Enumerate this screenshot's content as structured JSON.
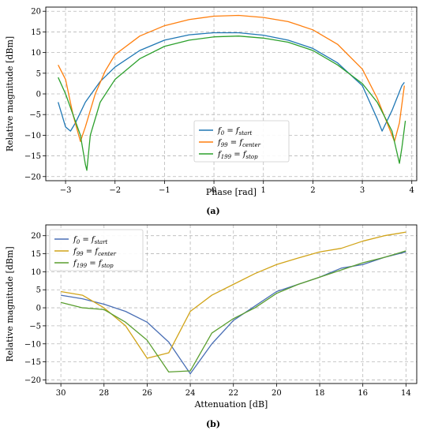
{
  "chart_data": [
    {
      "type": "line",
      "caption": "(a)",
      "xlabel": "Phase [rad]",
      "ylabel": "Relative magnitude [dBm]",
      "xlim": [
        -3.4,
        4.1
      ],
      "ylim": [
        -21,
        21
      ],
      "xticks": [
        -3,
        -2,
        -1,
        0,
        1,
        2,
        3,
        4
      ],
      "yticks": [
        -20,
        -15,
        -10,
        -5,
        0,
        5,
        10,
        15,
        20
      ],
      "grid": true,
      "legend_position": "lower-center",
      "colors": [
        "#1f77b4",
        "#ff7f0e",
        "#2ca02c"
      ],
      "series": [
        {
          "name": "f0 = fstart",
          "label_main": "f",
          "label_sub": "0",
          "label_eq": " = f",
          "label_sub2": "start",
          "x": [
            -3.15,
            -3.0,
            -2.9,
            -2.8,
            -2.6,
            -2.3,
            -2.0,
            -1.5,
            -1.0,
            -0.5,
            0.0,
            0.5,
            1.0,
            1.5,
            2.0,
            2.5,
            3.0,
            3.3,
            3.4,
            3.6,
            3.8,
            3.85
          ],
          "y": [
            -2,
            -8,
            -9,
            -7,
            -2,
            3,
            6.5,
            10.5,
            13,
            14.3,
            14.8,
            14.8,
            14.2,
            13,
            11,
            7.5,
            2,
            -6,
            -9,
            -4,
            2,
            2.8
          ]
        },
        {
          "name": "f99 = fcenter",
          "label_main": "f",
          "label_sub": "99",
          "label_eq": " = f",
          "label_sub2": "center",
          "x": [
            -3.15,
            -3.0,
            -2.85,
            -2.7,
            -2.6,
            -2.4,
            -2.2,
            -2.0,
            -1.5,
            -1.0,
            -0.5,
            0.0,
            0.5,
            1.0,
            1.5,
            2.0,
            2.5,
            3.0,
            3.3,
            3.6,
            3.65,
            3.75,
            3.85
          ],
          "y": [
            7,
            3.5,
            -5,
            -11.5,
            -8,
            0,
            5.5,
            9.5,
            14,
            16.5,
            18,
            18.8,
            19,
            18.5,
            17.5,
            15.5,
            12,
            6,
            -1,
            -10,
            -11.5,
            -7,
            2
          ]
        },
        {
          "name": "f199 = fstop",
          "label_main": "f",
          "label_sub": "199",
          "label_eq": " = f",
          "label_sub2": "stop",
          "x": [
            -3.15,
            -3.0,
            -2.85,
            -2.7,
            -2.6,
            -2.57,
            -2.5,
            -2.3,
            -2.0,
            -1.5,
            -1.0,
            -0.5,
            0.0,
            0.5,
            1.0,
            1.5,
            2.0,
            2.5,
            3.0,
            3.3,
            3.6,
            3.75,
            3.8,
            3.87
          ],
          "y": [
            4,
            0,
            -5,
            -10,
            -17,
            -18.5,
            -10,
            -2,
            3.5,
            8.5,
            11.5,
            13,
            13.8,
            14,
            13.5,
            12.5,
            10.5,
            7,
            2.5,
            -2,
            -9,
            -16.8,
            -13,
            -6.5
          ]
        }
      ]
    },
    {
      "type": "line",
      "caption": "(b)",
      "xlabel": "Attenuation [dB]",
      "ylabel": "Relative magnitude [dBm]",
      "xlim": [
        30.7,
        13.5
      ],
      "ylim": [
        -21,
        23
      ],
      "xticks": [
        30,
        28,
        26,
        24,
        22,
        20,
        18,
        16,
        14
      ],
      "yticks": [
        -20,
        -15,
        -10,
        -5,
        0,
        5,
        10,
        15,
        20
      ],
      "grid": true,
      "legend_position": "upper-left",
      "colors": [
        "#4a6fb5",
        "#d1a419",
        "#5a9e2f"
      ],
      "series": [
        {
          "name": "f0 = fstart",
          "label_main": "f",
          "label_sub": "0",
          "label_eq": " = f",
          "label_sub2": "start",
          "x": [
            30,
            29,
            28,
            27,
            26,
            25,
            24,
            23,
            22,
            21,
            20,
            19,
            18,
            17,
            16,
            15,
            14
          ],
          "y": [
            3.5,
            2.5,
            1,
            -1,
            -4,
            -9.5,
            -18.3,
            -10,
            -3.5,
            0.5,
            4.5,
            6.5,
            8.5,
            11,
            12,
            14,
            15.5
          ]
        },
        {
          "name": "f99 = fcenter",
          "label_main": "f",
          "label_sub": "99",
          "label_eq": " = f",
          "label_sub2": "center",
          "x": [
            30,
            29,
            28,
            27,
            26,
            25,
            24,
            23,
            22,
            21,
            20,
            19,
            18,
            17,
            16,
            15,
            14
          ],
          "y": [
            4.5,
            3.5,
            0,
            -5,
            -14,
            -12.5,
            -1,
            3.5,
            6.5,
            9.5,
            12,
            13.8,
            15.5,
            16.5,
            18.5,
            20,
            21
          ]
        },
        {
          "name": "f199 = fstop",
          "label_main": "f",
          "label_sub": "199",
          "label_eq": " = f",
          "label_sub2": "stop",
          "x": [
            30,
            29,
            28,
            27,
            26,
            25,
            24,
            23,
            22,
            21,
            20,
            19,
            18,
            17,
            16,
            15,
            14
          ],
          "y": [
            1.5,
            0,
            -0.5,
            -4,
            -9,
            -17.8,
            -17.5,
            -7,
            -3,
            0,
            4,
            6.5,
            8.5,
            10.5,
            12.5,
            14,
            15.8
          ]
        }
      ]
    }
  ]
}
